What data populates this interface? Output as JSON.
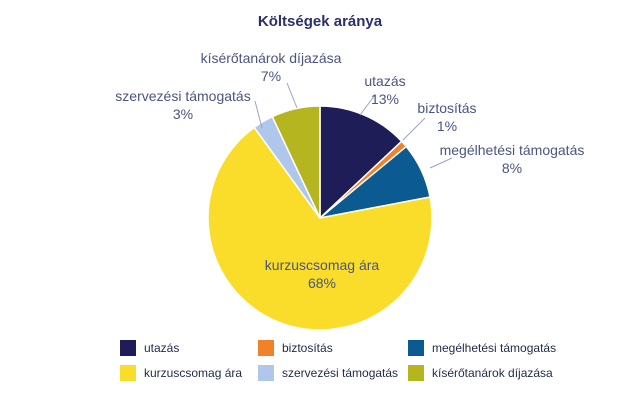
{
  "chart_data": {
    "type": "pie",
    "title": "Költségek aránya",
    "slices": [
      {
        "label": "utazás",
        "value": 13,
        "display": "13%",
        "color": "#1f1d58"
      },
      {
        "label": "biztosítás",
        "value": 1,
        "display": "1%",
        "color": "#f0822a"
      },
      {
        "label": "megélhetési támogatás",
        "value": 8,
        "display": "8%",
        "color": "#0b5a92"
      },
      {
        "label": "kurzuscsomag ára",
        "value": 68,
        "display": "68%",
        "color": "#f9dd2a"
      },
      {
        "label": "szervezési támogatás",
        "value": 3,
        "display": "3%",
        "color": "#aec7ea"
      },
      {
        "label": "kísérőtanárok díjazása",
        "value": 7,
        "display": "7%",
        "color": "#b5b520"
      }
    ],
    "legend": {
      "position": "bottom",
      "rows": [
        [
          "utazás",
          "biztosítás",
          "megélhetési támogatás"
        ],
        [
          "kurzuscsomag ára",
          "szervezési támogatás",
          "kísérőtanárok díjazása"
        ]
      ]
    }
  }
}
